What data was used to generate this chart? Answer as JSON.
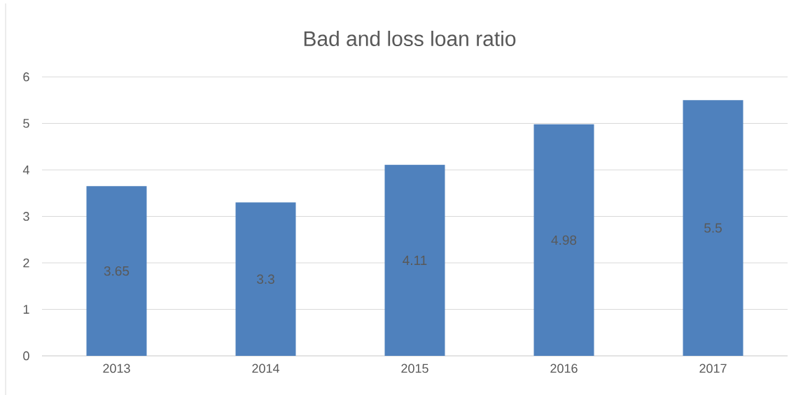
{
  "chart_data": {
    "type": "bar",
    "title": "Bad and loss loan ratio",
    "categories": [
      "2013",
      "2014",
      "2015",
      "2016",
      "2017"
    ],
    "values": [
      3.65,
      3.3,
      4.11,
      4.98,
      5.5
    ],
    "color": "#4f81bd",
    "ylim": [
      0,
      6
    ],
    "yticks": [
      0,
      1,
      2,
      3,
      4,
      5,
      6
    ],
    "grid": "y",
    "data_labels": true
  }
}
